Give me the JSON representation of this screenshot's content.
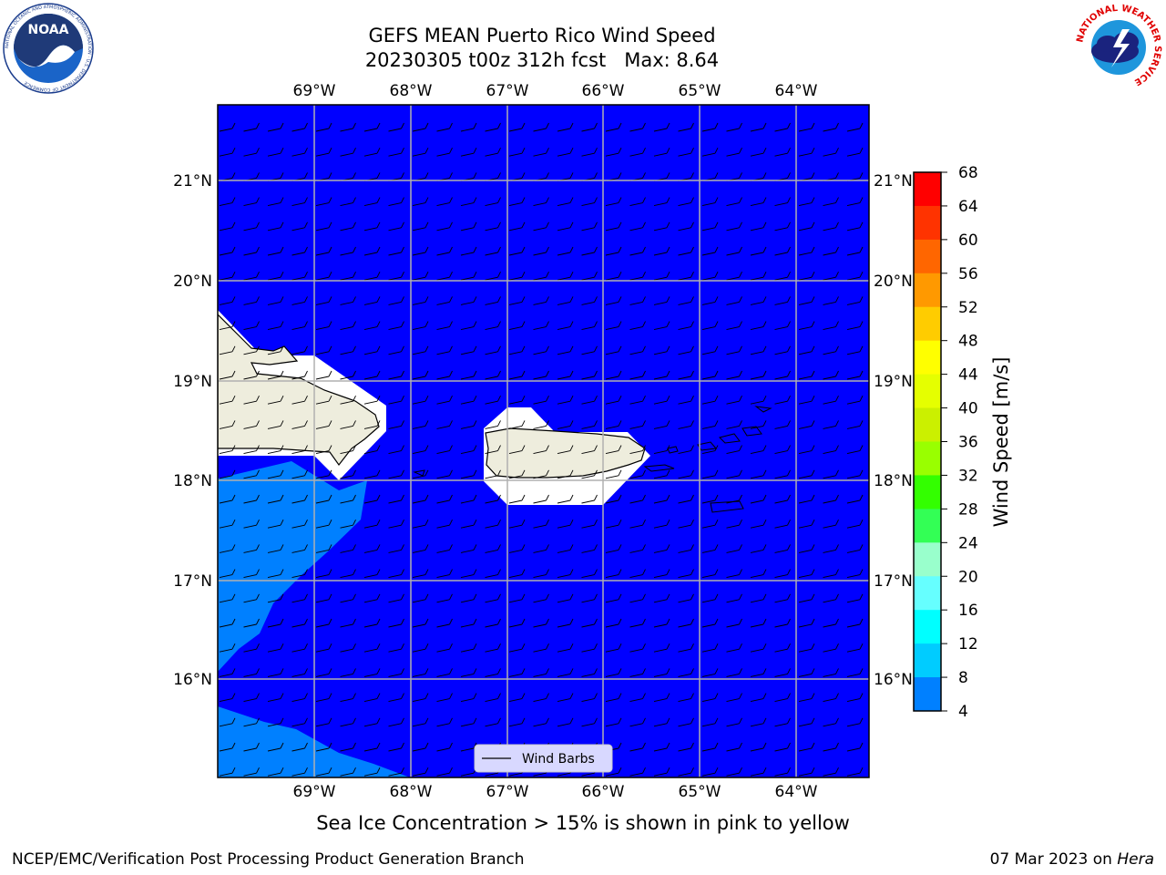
{
  "title_line1": "GEFS MEAN Puerto Rico Wind Speed",
  "title_line2": "20230305 t00z 312h fcst   Max: 8.64",
  "subtitle": "Sea Ice Concentration > 15% is shown in pink to yellow",
  "footer": {
    "left": "NCEP/EMC/Verification Post Processing Product Generation Branch",
    "date": "07 Mar 2023 on ",
    "machine": "Hera"
  },
  "logos": {
    "noaa": {
      "text": "NOAA",
      "ring_text": "NATIONAL OCEANIC AND ATMOSPHERIC ADMINISTRATION · U.S. DEPARTMENT OF COMMERCE"
    },
    "nws": {
      "ring_text": "NATIONAL WEATHER SERVICE"
    }
  },
  "map": {
    "lon_labels": [
      "69°W",
      "68°W",
      "67°W",
      "66°W",
      "65°W",
      "64°W"
    ],
    "lat_labels": [
      "21°N",
      "20°N",
      "19°N",
      "18°N",
      "17°N",
      "16°N"
    ],
    "legend_label": "Wind Barbs",
    "colors": {
      "ocean": "#0000ff",
      "high_wind": "#0080ff",
      "land": "#eeeddd",
      "grid": "#b0b0b0"
    }
  },
  "colorbar": {
    "label": "Wind Speed [m/s]",
    "ticks": [
      "68",
      "64",
      "60",
      "56",
      "52",
      "48",
      "44",
      "40",
      "36",
      "32",
      "28",
      "24",
      "20",
      "16",
      "12",
      "8",
      "4"
    ],
    "colors_top_to_bottom": [
      "#ff0000",
      "#ff3300",
      "#ff6600",
      "#ff9900",
      "#ffcc00",
      "#ffff00",
      "#e5ff00",
      "#cbf000",
      "#99ff00",
      "#33ff00",
      "#33ff55",
      "#99ffcc",
      "#66ffff",
      "#00ffff",
      "#00ccff",
      "#0080ff",
      "#0000ff"
    ]
  }
}
